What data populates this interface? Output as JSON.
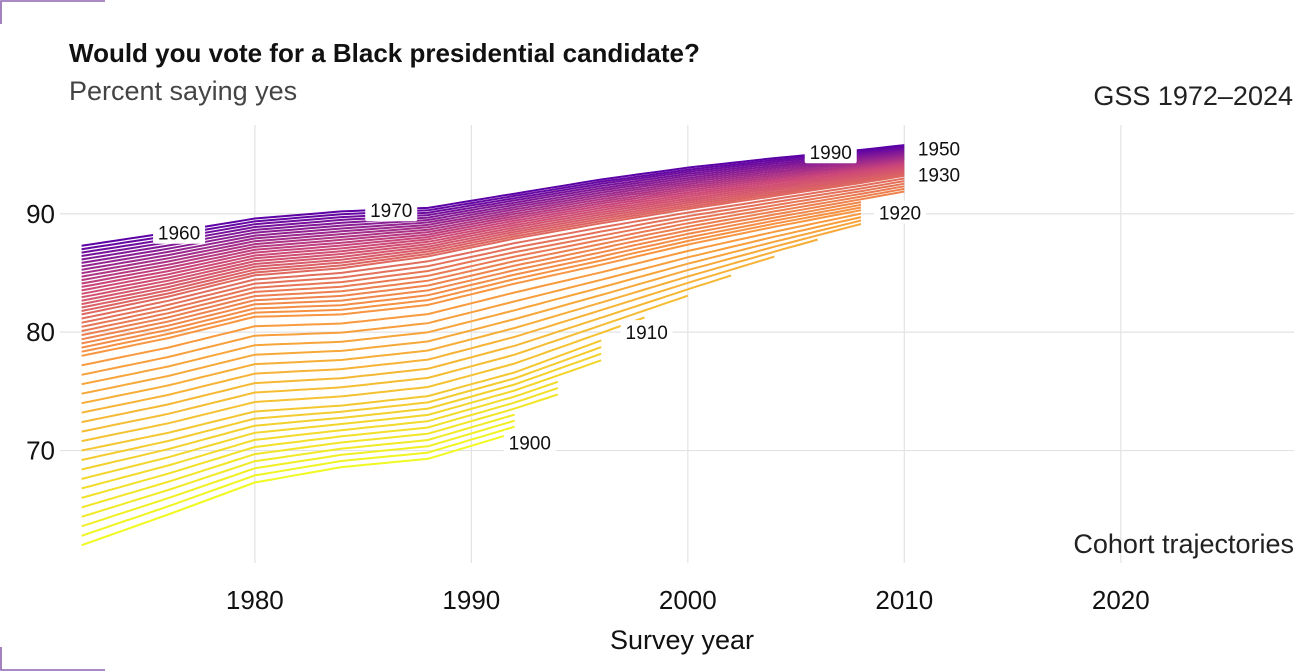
{
  "chart_data": {
    "type": "line",
    "title": "Would you vote for a Black presidential candidate?",
    "subtitle": "Percent saying yes",
    "source": "GSS 1972–2024",
    "annotation": "Cohort trajectories",
    "xlabel": "Survey year",
    "ylabel": "",
    "xlim": [
      1971,
      2028
    ],
    "ylim": [
      60.5,
      97.5
    ],
    "x_ticks": [
      1980,
      1990,
      2000,
      2010,
      2020
    ],
    "y_ticks": [
      70,
      80,
      90
    ],
    "grid": true,
    "legend": "none",
    "color_scale": {
      "low": "#f0f921",
      "mid": "#f89540",
      "midHigh": "#cc4778",
      "high": "#5c01a6",
      "cohort_range": [
        1900,
        1950
      ]
    },
    "cohorts": {
      "first": 1900,
      "last": 1950,
      "x_start": 1972,
      "x_end_rule": "last survey year for each cohort; ends near 1992 for 1900, 1996 for 1910, 2008 for 1920, 2010 for 1930 onward",
      "x_end": [
        1992,
        1992,
        1992,
        1992,
        1994,
        1994,
        1994,
        1996,
        1996,
        1996,
        1996,
        1998,
        2000,
        2002,
        2004,
        2006,
        2008,
        2008,
        2008,
        2008,
        2008,
        2008,
        2008,
        2008,
        2010,
        2010,
        2010,
        2010,
        2010,
        2010,
        2010,
        2010,
        2010,
        2010,
        2010,
        2010,
        2010,
        2010,
        2010,
        2010,
        2010,
        2010,
        2010,
        2010,
        2010,
        2010,
        2010,
        2010,
        2010,
        2010,
        2010
      ],
      "trajectory_1900": {
        "x": [
          1972,
          1976,
          1980,
          1984,
          1988,
          1992
        ],
        "y": [
          62.0,
          64.6,
          67.3,
          68.6,
          69.3,
          71.5
        ]
      },
      "trajectory_1910": {
        "x": [
          1972,
          1976,
          1980,
          1984,
          1988,
          1992,
          1996
        ],
        "y": [
          70.0,
          71.5,
          73.3,
          73.8,
          74.6,
          76.6,
          79.3
        ]
      },
      "trajectory_1920": {
        "x": [
          1972,
          1976,
          1980,
          1984,
          1988,
          1992,
          1996,
          2000,
          2004,
          2008
        ],
        "y": [
          78.0,
          79.5,
          81.3,
          81.5,
          82.3,
          84.1,
          85.7,
          87.4,
          88.9,
          90.3
        ]
      },
      "trajectory_1930": {
        "x": [
          1972,
          1976,
          1980,
          1984,
          1988,
          1992,
          1996,
          2000,
          2004,
          2008,
          2010
        ],
        "y": [
          81.5,
          83.0,
          84.8,
          85.4,
          86.4,
          87.9,
          89.2,
          90.4,
          91.5,
          92.6,
          93.2
        ]
      },
      "trajectory_1950": {
        "x": [
          1972,
          1976,
          1980,
          1984,
          1988,
          1992,
          1996,
          2000,
          2004,
          2008,
          2010
        ],
        "y": [
          87.3,
          88.4,
          89.6,
          90.2,
          90.5,
          91.7,
          92.9,
          93.9,
          94.7,
          95.4,
          95.8
        ]
      }
    },
    "labels": [
      {
        "text": "1960",
        "x": 1976.5,
        "y": 88.4
      },
      {
        "text": "1970",
        "x": 1986.3,
        "y": 90.3
      },
      {
        "text": "1990",
        "x": 2006.6,
        "y": 95.2
      },
      {
        "text": "1950",
        "x": 2011.6,
        "y": 95.5
      },
      {
        "text": "1930",
        "x": 2011.6,
        "y": 93.3
      },
      {
        "text": "1920",
        "x": 2009.8,
        "y": 90.1
      },
      {
        "text": "1910",
        "x": 1998.1,
        "y": 80.0
      },
      {
        "text": "1900",
        "x": 1992.7,
        "y": 70.7
      }
    ]
  }
}
